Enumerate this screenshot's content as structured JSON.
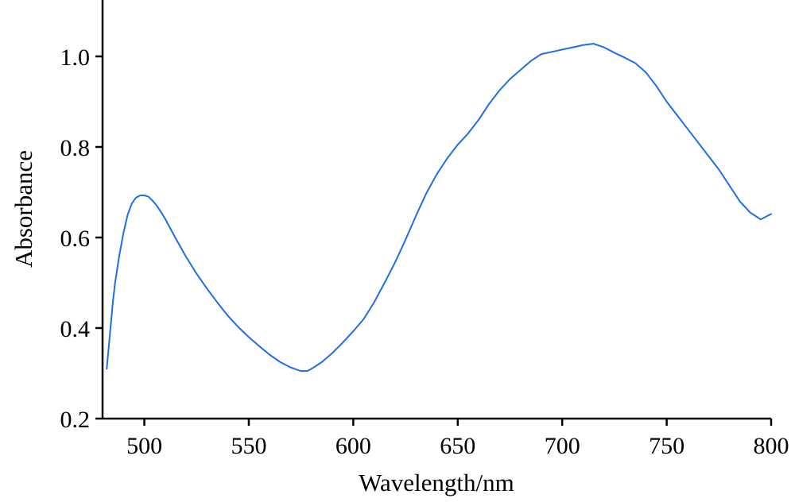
{
  "chart_data": {
    "type": "line",
    "xlabel": "Wavelength/nm",
    "ylabel": "Absorbance",
    "xlim": [
      480,
      800
    ],
    "ylim": [
      0.2,
      1.1
    ],
    "x_ticks": [
      500,
      550,
      600,
      650,
      700,
      750,
      800
    ],
    "y_ticks": [
      0.2,
      0.4,
      0.6,
      0.8,
      1.0
    ],
    "x_tick_labels": [
      "500",
      "550",
      "600",
      "650",
      "700",
      "750",
      "800"
    ],
    "y_tick_labels": [
      "0.2",
      "0.4",
      "0.6",
      "0.8",
      "1.0"
    ],
    "grid": false,
    "legend": "none",
    "line_color": "#1f6fe0",
    "series": [
      {
        "x": [
          482,
          483,
          484,
          485,
          486,
          488,
          490,
          492,
          494,
          496,
          498,
          500,
          502,
          504,
          506,
          508,
          510,
          515,
          520,
          525,
          530,
          535,
          540,
          545,
          550,
          555,
          560,
          565,
          570,
          575,
          578,
          580,
          585,
          590,
          595,
          600,
          605,
          610,
          615,
          620,
          625,
          630,
          635,
          640,
          645,
          650,
          655,
          660,
          665,
          670,
          675,
          680,
          685,
          690,
          695,
          700,
          705,
          710,
          715,
          720,
          725,
          730,
          735,
          740,
          745,
          750,
          755,
          760,
          765,
          770,
          775,
          780,
          785,
          790,
          795,
          800
        ],
        "values": [
          0.31,
          0.36,
          0.41,
          0.46,
          0.5,
          0.56,
          0.61,
          0.65,
          0.675,
          0.688,
          0.693,
          0.693,
          0.69,
          0.681,
          0.67,
          0.656,
          0.641,
          0.598,
          0.557,
          0.52,
          0.487,
          0.456,
          0.427,
          0.402,
          0.38,
          0.36,
          0.341,
          0.325,
          0.313,
          0.305,
          0.305,
          0.31,
          0.325,
          0.345,
          0.368,
          0.393,
          0.42,
          0.457,
          0.5,
          0.545,
          0.595,
          0.648,
          0.698,
          0.74,
          0.775,
          0.805,
          0.83,
          0.86,
          0.895,
          0.925,
          0.95,
          0.97,
          0.99,
          1.005,
          1.01,
          1.015,
          1.02,
          1.025,
          1.028,
          1.02,
          1.008,
          0.997,
          0.985,
          0.965,
          0.935,
          0.9,
          0.87,
          0.84,
          0.81,
          0.78,
          0.75,
          0.715,
          0.68,
          0.655,
          0.64,
          0.652
        ]
      }
    ]
  }
}
